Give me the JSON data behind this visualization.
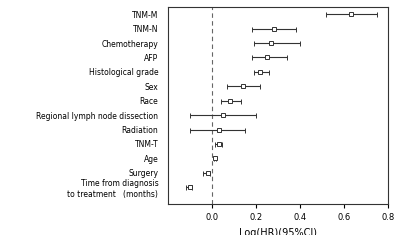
{
  "labels": [
    "TNM-M",
    "TNM-N",
    "Chemotherapy",
    "AFP",
    "Histological grade",
    "Sex",
    "Race",
    "Regional lymph node dissection",
    "Radiation",
    "TNM-T",
    "Age",
    "Surgery",
    "Time from diagnosis\nto treatment   (months)"
  ],
  "centers": [
    0.63,
    0.28,
    0.27,
    0.25,
    0.22,
    0.14,
    0.08,
    0.05,
    0.03,
    0.03,
    0.015,
    -0.02,
    -0.1
  ],
  "ci_low": [
    0.52,
    0.18,
    0.19,
    0.18,
    0.19,
    0.07,
    0.04,
    -0.1,
    -0.1,
    0.015,
    0.01,
    -0.04,
    -0.12
  ],
  "ci_high": [
    0.75,
    0.38,
    0.4,
    0.34,
    0.26,
    0.22,
    0.13,
    0.2,
    0.15,
    0.045,
    0.02,
    -0.01,
    -0.09
  ],
  "xlim": [
    -0.2,
    0.8
  ],
  "xticks": [
    0.0,
    0.2,
    0.4,
    0.6,
    0.8
  ],
  "xtick_labels": [
    "0.0",
    "0.2",
    "0.4",
    "0.6",
    "0.8"
  ],
  "xlabel": "Log(HR)(95%CI)",
  "vline_x": 0.0,
  "marker": "s",
  "marker_size": 3.5,
  "line_color": "#333333",
  "marker_facecolor": "white",
  "marker_edgecolor": "#333333",
  "bg_color": "#ffffff",
  "plot_bg_color": "#ffffff",
  "border_color": "#333333",
  "label_fontsize": 5.5,
  "tick_fontsize": 6.0,
  "xlabel_fontsize": 7.0
}
